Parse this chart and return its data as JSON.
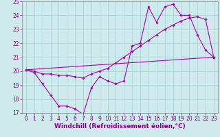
{
  "title": "",
  "xlabel": "Windchill (Refroidissement éolien,°C)",
  "xlim": [
    -0.5,
    23.5
  ],
  "ylim": [
    17,
    25
  ],
  "xticks": [
    0,
    1,
    2,
    3,
    4,
    5,
    6,
    7,
    8,
    9,
    10,
    11,
    12,
    13,
    14,
    15,
    16,
    17,
    18,
    19,
    20,
    21,
    22,
    23
  ],
  "yticks": [
    17,
    18,
    19,
    20,
    21,
    22,
    23,
    24,
    25
  ],
  "background_color": "#ceeaed",
  "grid_color": "#aad4d8",
  "line_color": "#aa00aa",
  "line1_y": [
    20.1,
    19.9,
    19.1,
    18.3,
    17.5,
    17.5,
    17.3,
    16.9,
    18.8,
    19.6,
    19.3,
    19.1,
    19.3,
    21.8,
    22.0,
    24.6,
    23.5,
    24.6,
    24.8,
    24.0,
    24.0,
    22.6,
    21.5,
    21.0
  ],
  "line2_y": [
    20.1,
    20.0,
    19.8,
    19.8,
    19.7,
    19.7,
    19.6,
    19.5,
    19.8,
    20.0,
    20.2,
    20.6,
    21.0,
    21.4,
    21.8,
    22.2,
    22.6,
    23.0,
    23.3,
    23.6,
    23.8,
    23.9,
    23.7,
    21.0
  ],
  "line3_x": [
    0,
    23
  ],
  "line3_y": [
    20.1,
    21.0
  ],
  "tick_fontsize": 5.5,
  "xlabel_fontsize": 6.5,
  "xlabel_color": "#880088"
}
